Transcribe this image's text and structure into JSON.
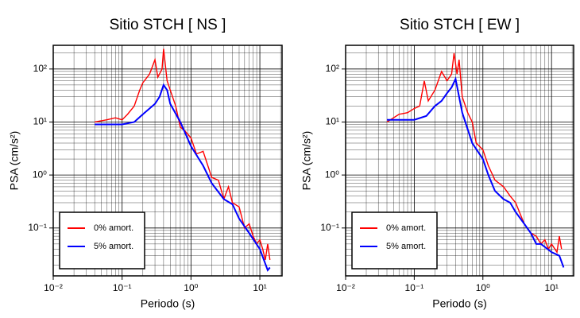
{
  "chart_data": [
    {
      "type": "line",
      "title": "Sitio STCH [ NS ]",
      "x_label": "Periodo (s)",
      "y_label": "PSA (cm/s²)",
      "xscale": "log",
      "yscale": "log",
      "grid": true,
      "legend": "lower left",
      "xlim": [
        0.01,
        21
      ],
      "ylim": [
        0.0125,
        280
      ],
      "xticks": [
        {
          "value": 0.01,
          "label": "10⁻²"
        },
        {
          "value": 0.1,
          "label": "10⁻¹"
        },
        {
          "value": 1,
          "label": "10⁰"
        },
        {
          "value": 10,
          "label": "10¹"
        }
      ],
      "yticks": [
        {
          "value": 0.1,
          "label": "10⁻¹"
        },
        {
          "value": 1,
          "label": "10⁰"
        },
        {
          "value": 10,
          "label": "10¹"
        },
        {
          "value": 100,
          "label": "10²"
        }
      ],
      "series": [
        {
          "name": "0% amort.",
          "color": "#ff0000",
          "x": [
            0.04,
            0.06,
            0.08,
            0.1,
            0.12,
            0.15,
            0.18,
            0.2,
            0.25,
            0.3,
            0.33,
            0.38,
            0.4,
            0.45,
            0.5,
            0.6,
            0.7,
            0.8,
            1,
            1.2,
            1.5,
            2,
            2.5,
            3,
            3.5,
            4,
            5,
            6,
            7,
            8,
            9,
            10,
            11,
            12,
            13,
            14
          ],
          "values": [
            10,
            11,
            12,
            11,
            14,
            20,
            40,
            55,
            80,
            150,
            70,
            100,
            240,
            60,
            40,
            20,
            8,
            7,
            5,
            2.5,
            2.8,
            0.9,
            0.8,
            0.35,
            0.6,
            0.3,
            0.25,
            0.1,
            0.12,
            0.07,
            0.05,
            0.06,
            0.04,
            0.025,
            0.05,
            0.025
          ]
        },
        {
          "name": "5% amort.",
          "color": "#0000ff",
          "x": [
            0.04,
            0.1,
            0.15,
            0.2,
            0.3,
            0.35,
            0.4,
            0.45,
            0.5,
            0.7,
            1,
            1.5,
            2,
            3,
            4,
            5,
            7,
            10,
            13,
            14
          ],
          "values": [
            9,
            9,
            10,
            14,
            22,
            30,
            50,
            40,
            22,
            10,
            3.5,
            1.5,
            0.7,
            0.35,
            0.28,
            0.15,
            0.08,
            0.04,
            0.016,
            0.018
          ]
        }
      ]
    },
    {
      "type": "line",
      "title": "Sitio STCH [ EW ]",
      "x_label": "Periodo (s)",
      "y_label": "PSA (cm/s²)",
      "xscale": "log",
      "yscale": "log",
      "grid": true,
      "legend": "lower left",
      "xlim": [
        0.01,
        21
      ],
      "ylim": [
        0.0125,
        280
      ],
      "xticks": [
        {
          "value": 0.01,
          "label": "10⁻²"
        },
        {
          "value": 0.1,
          "label": "10⁻¹"
        },
        {
          "value": 1,
          "label": "10⁰"
        },
        {
          "value": 10,
          "label": "10¹"
        }
      ],
      "yticks": [
        {
          "value": 0.1,
          "label": "10⁻¹"
        },
        {
          "value": 1,
          "label": "10⁰"
        },
        {
          "value": 10,
          "label": "10¹"
        },
        {
          "value": 100,
          "label": "10²"
        }
      ],
      "series": [
        {
          "name": "0% amort.",
          "color": "#ff0000",
          "x": [
            0.04,
            0.06,
            0.08,
            0.1,
            0.12,
            0.14,
            0.16,
            0.2,
            0.25,
            0.3,
            0.35,
            0.38,
            0.42,
            0.45,
            0.5,
            0.6,
            0.7,
            0.8,
            1,
            1.2,
            1.5,
            2,
            2.5,
            3,
            4,
            5,
            6,
            7,
            8,
            9,
            10,
            12,
            13,
            14
          ],
          "values": [
            10,
            14,
            15,
            18,
            20,
            60,
            25,
            40,
            90,
            60,
            80,
            200,
            80,
            150,
            30,
            15,
            10,
            4,
            3,
            1.5,
            0.8,
            0.6,
            0.4,
            0.3,
            0.12,
            0.08,
            0.07,
            0.05,
            0.06,
            0.04,
            0.05,
            0.035,
            0.07,
            0.04
          ]
        },
        {
          "name": "5% amort.",
          "color": "#0000ff",
          "x": [
            0.04,
            0.1,
            0.15,
            0.2,
            0.25,
            0.3,
            0.35,
            0.4,
            0.45,
            0.5,
            0.7,
            1,
            1.2,
            1.5,
            2,
            2.5,
            3,
            4,
            5,
            6,
            7,
            10,
            13,
            15
          ],
          "values": [
            11,
            11,
            13,
            20,
            25,
            35,
            45,
            65,
            30,
            15,
            4,
            2,
            1,
            0.5,
            0.35,
            0.3,
            0.2,
            0.12,
            0.08,
            0.05,
            0.05,
            0.035,
            0.03,
            0.018
          ]
        }
      ]
    }
  ]
}
